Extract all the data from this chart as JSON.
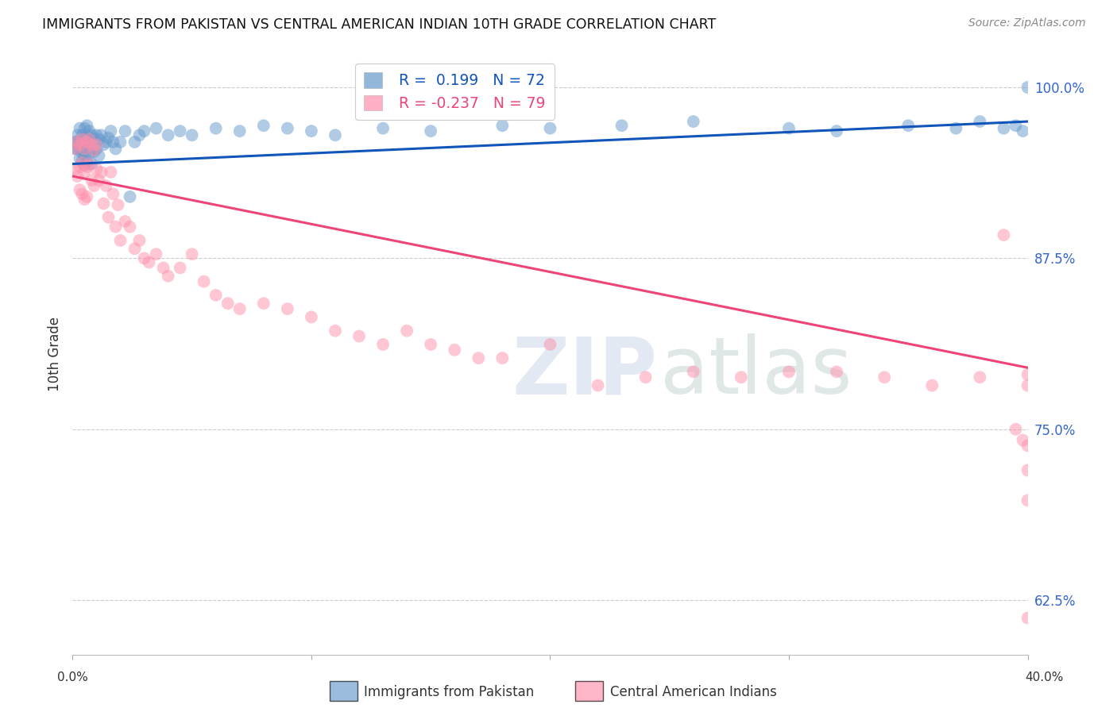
{
  "title": "IMMIGRANTS FROM PAKISTAN VS CENTRAL AMERICAN INDIAN 10TH GRADE CORRELATION CHART",
  "source": "Source: ZipAtlas.com",
  "ylabel": "10th Grade",
  "ytick_labels": [
    "100.0%",
    "87.5%",
    "75.0%",
    "62.5%"
  ],
  "ytick_values": [
    1.0,
    0.875,
    0.75,
    0.625
  ],
  "legend_blue_r": "R =  0.199",
  "legend_blue_n": "N = 72",
  "legend_pink_r": "R = -0.237",
  "legend_pink_n": "N = 79",
  "blue_color": "#6699CC",
  "pink_color": "#FF8FAB",
  "blue_line_color": "#1155BB",
  "pink_line_color": "#EE4477",
  "xlim": [
    0.0,
    0.4
  ],
  "ylim": [
    0.585,
    1.025
  ],
  "blue_trend_x": [
    0.0,
    0.4
  ],
  "blue_trend_y": [
    0.944,
    0.975
  ],
  "pink_trend_x": [
    0.0,
    0.4
  ],
  "pink_trend_y": [
    0.935,
    0.795
  ],
  "blue_scatter_x": [
    0.001,
    0.001,
    0.002,
    0.002,
    0.002,
    0.003,
    0.003,
    0.003,
    0.003,
    0.004,
    0.004,
    0.004,
    0.004,
    0.005,
    0.005,
    0.005,
    0.005,
    0.005,
    0.006,
    0.006,
    0.006,
    0.006,
    0.007,
    0.007,
    0.007,
    0.008,
    0.008,
    0.008,
    0.009,
    0.009,
    0.01,
    0.01,
    0.011,
    0.011,
    0.012,
    0.013,
    0.014,
    0.015,
    0.016,
    0.017,
    0.018,
    0.02,
    0.022,
    0.024,
    0.026,
    0.028,
    0.03,
    0.035,
    0.04,
    0.045,
    0.05,
    0.06,
    0.07,
    0.08,
    0.09,
    0.1,
    0.11,
    0.13,
    0.15,
    0.18,
    0.2,
    0.23,
    0.26,
    0.3,
    0.32,
    0.35,
    0.37,
    0.38,
    0.39,
    0.395,
    0.398,
    0.4
  ],
  "blue_scatter_y": [
    0.96,
    0.955,
    0.965,
    0.96,
    0.955,
    0.97,
    0.96,
    0.955,
    0.948,
    0.965,
    0.958,
    0.952,
    0.946,
    0.97,
    0.963,
    0.956,
    0.95,
    0.943,
    0.972,
    0.965,
    0.958,
    0.946,
    0.968,
    0.961,
    0.952,
    0.965,
    0.955,
    0.944,
    0.962,
    0.953,
    0.965,
    0.955,
    0.962,
    0.95,
    0.965,
    0.958,
    0.96,
    0.963,
    0.968,
    0.96,
    0.955,
    0.96,
    0.968,
    0.92,
    0.96,
    0.965,
    0.968,
    0.97,
    0.965,
    0.968,
    0.965,
    0.97,
    0.968,
    0.972,
    0.97,
    0.968,
    0.965,
    0.97,
    0.968,
    0.972,
    0.97,
    0.972,
    0.975,
    0.97,
    0.968,
    0.972,
    0.97,
    0.975,
    0.97,
    0.972,
    0.968,
    1.0
  ],
  "pink_scatter_x": [
    0.001,
    0.001,
    0.002,
    0.002,
    0.003,
    0.003,
    0.003,
    0.004,
    0.004,
    0.004,
    0.005,
    0.005,
    0.005,
    0.006,
    0.006,
    0.006,
    0.007,
    0.007,
    0.008,
    0.008,
    0.009,
    0.009,
    0.01,
    0.01,
    0.011,
    0.012,
    0.013,
    0.014,
    0.015,
    0.016,
    0.017,
    0.018,
    0.019,
    0.02,
    0.022,
    0.024,
    0.026,
    0.028,
    0.03,
    0.032,
    0.035,
    0.038,
    0.04,
    0.045,
    0.05,
    0.055,
    0.06,
    0.065,
    0.07,
    0.08,
    0.09,
    0.1,
    0.11,
    0.12,
    0.13,
    0.14,
    0.15,
    0.16,
    0.17,
    0.18,
    0.2,
    0.22,
    0.24,
    0.26,
    0.28,
    0.3,
    0.32,
    0.34,
    0.36,
    0.38,
    0.39,
    0.395,
    0.398,
    0.4,
    0.4,
    0.4,
    0.4,
    0.4,
    0.4
  ],
  "pink_scatter_y": [
    0.955,
    0.94,
    0.96,
    0.935,
    0.958,
    0.942,
    0.925,
    0.962,
    0.945,
    0.922,
    0.955,
    0.938,
    0.918,
    0.96,
    0.942,
    0.92,
    0.962,
    0.944,
    0.958,
    0.932,
    0.954,
    0.928,
    0.958,
    0.94,
    0.932,
    0.938,
    0.915,
    0.928,
    0.905,
    0.938,
    0.922,
    0.898,
    0.914,
    0.888,
    0.902,
    0.898,
    0.882,
    0.888,
    0.875,
    0.872,
    0.878,
    0.868,
    0.862,
    0.868,
    0.878,
    0.858,
    0.848,
    0.842,
    0.838,
    0.842,
    0.838,
    0.832,
    0.822,
    0.818,
    0.812,
    0.822,
    0.812,
    0.808,
    0.802,
    0.802,
    0.812,
    0.782,
    0.788,
    0.792,
    0.788,
    0.792,
    0.792,
    0.788,
    0.782,
    0.788,
    0.892,
    0.75,
    0.742,
    0.79,
    0.782,
    0.72,
    0.738,
    0.698,
    0.612
  ]
}
